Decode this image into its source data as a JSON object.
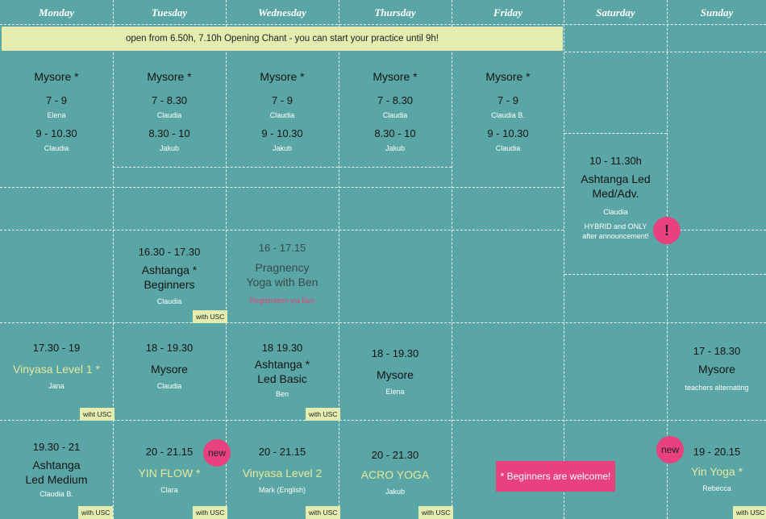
{
  "days": [
    "Monday",
    "Tuesday",
    "Wednesday",
    "Thursday",
    "Friday",
    "Saturday",
    "Sunday"
  ],
  "banner": "open from 6.50h, 7.10h  Opening Chant - you can start your practice until 9h!",
  "mysore_morning": [
    {
      "title": "Mysore *",
      "s1_time": "7 - 9",
      "s1_teacher": "Elena",
      "s2_time": "9 - 10.30",
      "s2_teacher": "Claudia"
    },
    {
      "title": "Mysore *",
      "s1_time": "7 - 8.30",
      "s1_teacher": "Claudia",
      "s2_time": "8.30 - 10",
      "s2_teacher": "Jakub"
    },
    {
      "title": "Mysore *",
      "s1_time": "7 - 9",
      "s1_teacher": "Claudia",
      "s2_time": "9 - 10.30",
      "s2_teacher": "Jakub"
    },
    {
      "title": "Mysore *",
      "s1_time": "7 - 8.30",
      "s1_teacher": "Claudia",
      "s2_time": "8.30 - 10",
      "s2_teacher": "Jakub"
    },
    {
      "title": "Mysore *",
      "s1_time": "7 - 9",
      "s1_teacher": "Claudia B.",
      "s2_time": "9 - 10.30",
      "s2_teacher": "Claudia"
    }
  ],
  "saturday_class": {
    "time": "10 - 11.30h",
    "title1": "Ashtanga Led",
    "title2": "Med/Adv.",
    "teacher": "Claudia",
    "note1": "HYBRID and ONLY",
    "note2": "after announcement!",
    "badge": "!"
  },
  "afternoon": {
    "tuesday": {
      "time": "16.30  - 17.30",
      "title1": "Ashtanga *",
      "title2": "Beginners",
      "teacher": "Claudia",
      "usc": "with USC"
    },
    "wednesday": {
      "time": "16 - 17.15",
      "title1": "Pragnency",
      "title2": "Yoga with Ben",
      "note": "Registration via Ben"
    }
  },
  "evening1": {
    "monday": {
      "time": "17.30 - 19",
      "title": "Vinyasa Level 1 *",
      "teacher": "Jana",
      "usc": "wiht USC"
    },
    "tuesday": {
      "time": "18 - 19.30",
      "title": "Mysore",
      "teacher": "Claudia"
    },
    "wednesday": {
      "time": "18  19.30",
      "title1": "Ashtanga *",
      "title2": "Led Basic",
      "teacher": "Ben",
      "usc": "with USC"
    },
    "thursday": {
      "time": "18 - 19.30",
      "title": "Mysore",
      "teacher": "Elena"
    },
    "sunday": {
      "time": "17 - 18.30",
      "title": "Mysore",
      "teacher": "teachers alternating"
    }
  },
  "evening2": {
    "monday": {
      "time": "19.30 - 21",
      "title1": "Ashtanga",
      "title2": "Led Medium",
      "teacher": "Claudia B.",
      "usc": "with  USC"
    },
    "tuesday": {
      "time": "20 - 21.15",
      "title": "YIN FLOW *",
      "teacher": "Clara",
      "usc": "with USC",
      "badge": "new"
    },
    "wednesday": {
      "time": "20 - 21.15",
      "title": "Vinyasa Level 2",
      "teacher": "Mark (English)",
      "usc": "with USC"
    },
    "thursday": {
      "time": "20 - 21.30",
      "title": "ACRO YOGA",
      "teacher": "Jakub",
      "usc": "with USC"
    },
    "sunday": {
      "time": "19 - 20.15",
      "title": "Yin Yoga *",
      "teacher": "Rebecca",
      "usc": "with USC",
      "badge": "new"
    }
  },
  "beginners_note": "* Beginners are welcome!",
  "colors": {
    "background": "#5aa5a5",
    "banner": "#e4ecb0",
    "accent_pink": "#e8417e",
    "highlight_text": "#e6e89c"
  }
}
